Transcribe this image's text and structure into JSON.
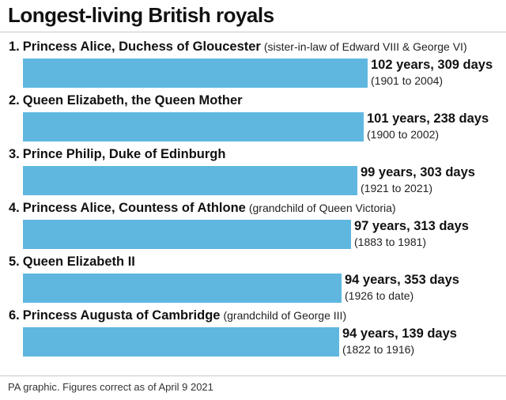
{
  "title": "Longest-living British royals",
  "footer": "PA graphic. Figures correct as of April 9 2021",
  "chart_data": {
    "type": "bar",
    "orientation": "horizontal",
    "title": "Longest-living British royals",
    "unit": "days",
    "bar_color": "#5fb7e0",
    "items": [
      {
        "rank": "1.",
        "name": "Princess Alice, Duchess of Gloucester",
        "note": "(sister-in-law of Edward VIII & George VI)",
        "value_label": "102 years, 309 days",
        "range": "(1901 to 2004)",
        "value": 37564
      },
      {
        "rank": "2.",
        "name": "Queen Elizabeth, the Queen Mother",
        "note": "",
        "value_label": "101 years, 238 days",
        "range": "(1900 to 2002)",
        "value": 37128
      },
      {
        "rank": "3.",
        "name": "Prince Philip, Duke of Edinburgh",
        "note": "",
        "value_label": "99 years, 303 days",
        "range": "(1921 to 2021)",
        "value": 36462
      },
      {
        "rank": "4.",
        "name": "Princess Alice, Countess of Athlone",
        "note": "(grandchild of Queen Victoria)",
        "value_label": "97 years, 313 days",
        "range": "(1883 to 1981)",
        "value": 35742
      },
      {
        "rank": "5.",
        "name": "Queen Elizabeth II",
        "note": "",
        "value_label": "94 years, 353 days",
        "range": "(1926 to date)",
        "value": 34686
      },
      {
        "rank": "6.",
        "name": "Princess Augusta of Cambridge",
        "note": "(grandchild of George III)",
        "value_label": "94 years, 139 days",
        "range": "(1822 to 1916)",
        "value": 34472
      }
    ]
  }
}
